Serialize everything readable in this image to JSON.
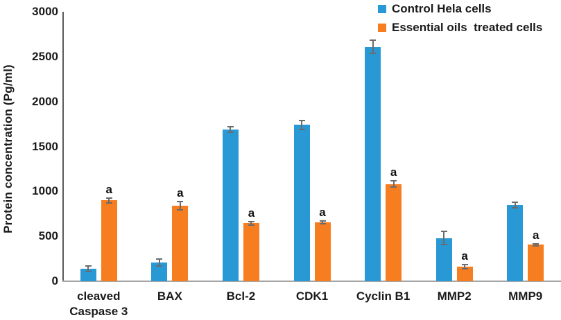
{
  "chart_data": {
    "type": "bar",
    "title": "",
    "ylabel": "Protein concentration (Pg/ml)",
    "xlabel": "",
    "ylim": [
      0,
      3000
    ],
    "yticks": [
      0,
      500,
      1000,
      1500,
      2000,
      2500,
      3000
    ],
    "grid": false,
    "legend_position": "top-right",
    "categories": [
      "cleaved Caspase 3",
      "BAX",
      "Bcl-2",
      "CDK1",
      "Cyclin B1",
      "MMP2",
      "MMP9"
    ],
    "series": [
      {
        "name": "Control Hela cells",
        "color": "#2999D6",
        "values": [
          140,
          210,
          1690,
          1740,
          2610,
          480,
          850
        ],
        "errors": [
          30,
          40,
          30,
          50,
          70,
          75,
          30
        ],
        "sig_labels": [
          "",
          "",
          "",
          "",
          "",
          "",
          ""
        ]
      },
      {
        "name": "Essential oils  treated cells",
        "color": "#F67E20",
        "values": [
          900,
          840,
          645,
          655,
          1080,
          160,
          405
        ],
        "errors": [
          25,
          45,
          20,
          15,
          35,
          25,
          15
        ],
        "sig_labels": [
          "a",
          "a",
          "a",
          "a",
          "a",
          "a",
          "a"
        ]
      }
    ],
    "error_bar_color": "#6b6b6b",
    "y_axis_color": "#595959",
    "x_axis_color": "#a6a6a6",
    "text_color": "#1a1a1a"
  }
}
